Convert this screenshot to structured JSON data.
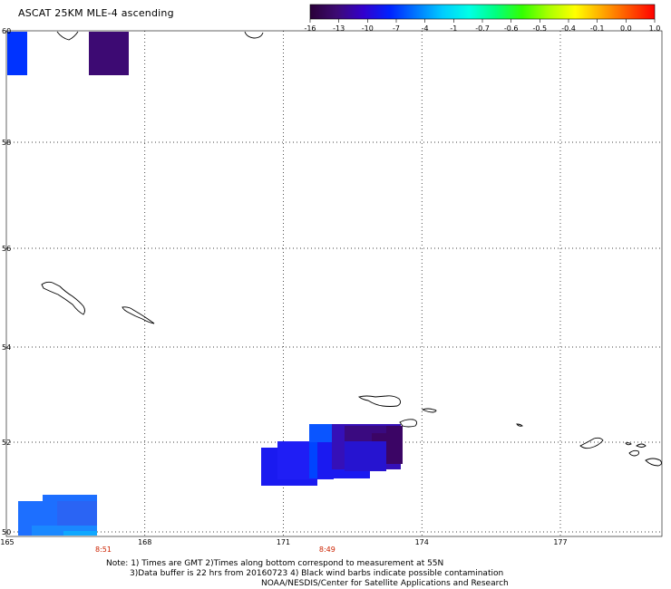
{
  "title": "ASCAT 25KM MLE-4 ascending",
  "colorbar": {
    "labels": [
      "-16",
      "-13",
      "-10",
      "-7",
      "-4",
      "-1",
      "-0.7",
      "-0.6",
      "-0.5",
      "-0.4",
      "-0.1",
      "0.0",
      "1.0"
    ],
    "gradient": [
      "#2a0038",
      "#3d0a73",
      "#3300cc",
      "#0022ff",
      "#0077ff",
      "#00ccff",
      "#00ffe6",
      "#00ff80",
      "#33ff00",
      "#aaff00",
      "#ffff00",
      "#ffaa00",
      "#ff5500",
      "#ff0000"
    ]
  },
  "map": {
    "lon_range": [
      165,
      179.2
    ],
    "lat_range": [
      50,
      60
    ],
    "lon_labels": [
      {
        "v": 165,
        "t": "165"
      },
      {
        "v": 168,
        "t": "168"
      },
      {
        "v": 171,
        "t": "171"
      },
      {
        "v": 174,
        "t": "174"
      },
      {
        "v": 177,
        "t": "177"
      }
    ],
    "lat_labels": [
      {
        "v": 60,
        "t": "60"
      },
      {
        "v": 58,
        "t": "58"
      },
      {
        "v": 56,
        "t": "56"
      },
      {
        "v": 54,
        "t": "54"
      },
      {
        "v": 52,
        "t": "52"
      },
      {
        "v": 50,
        "t": "50"
      }
    ],
    "grid": true,
    "times": [
      {
        "lon": 167.1,
        "t": "8:51"
      },
      {
        "lon": 171.95,
        "t": "8:49"
      }
    ]
  },
  "notes": {
    "line1": "Note: 1) Times are GMT 2)Times along bottom correspond to measurement at 55N",
    "line2": "3)Data buffer is 22 hrs from 20160723 4) Black wind barbs indicate possible contamination",
    "line3": "NOAA/NESDIS/Center for Satellite Applications and Research"
  }
}
